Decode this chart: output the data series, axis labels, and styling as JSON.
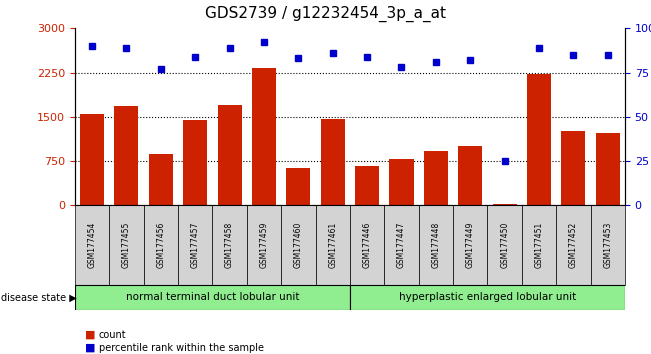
{
  "title": "GDS2739 / g12232454_3p_a_at",
  "samples": [
    "GSM177454",
    "GSM177455",
    "GSM177456",
    "GSM177457",
    "GSM177458",
    "GSM177459",
    "GSM177460",
    "GSM177461",
    "GSM177446",
    "GSM177447",
    "GSM177448",
    "GSM177449",
    "GSM177450",
    "GSM177451",
    "GSM177452",
    "GSM177453"
  ],
  "counts": [
    1550,
    1680,
    870,
    1440,
    1700,
    2320,
    640,
    1460,
    670,
    790,
    920,
    1000,
    20,
    2220,
    1260,
    1230
  ],
  "percentiles": [
    90,
    89,
    77,
    84,
    89,
    92,
    83,
    86,
    84,
    78,
    81,
    82,
    25,
    89,
    85,
    85
  ],
  "group1_label": "normal terminal duct lobular unit",
  "group2_label": "hyperplastic enlarged lobular unit",
  "group1_count": 8,
  "group2_count": 8,
  "bar_color": "#cc2200",
  "dot_color": "#0000cc",
  "ylim_left": [
    0,
    3000
  ],
  "ylim_right": [
    0,
    100
  ],
  "yticks_left": [
    0,
    750,
    1500,
    2250,
    3000
  ],
  "yticks_right": [
    0,
    25,
    50,
    75,
    100
  ],
  "grid_values": [
    750,
    1500,
    2250
  ],
  "background_color": "#ffffff",
  "group1_color": "#90ee90",
  "group2_color": "#90ee90",
  "bar_color_hex": "#cc2200",
  "dot_color_hex": "#0000cc",
  "title_fontsize": 11,
  "bar_width": 0.7,
  "label_fontsize": 5.5,
  "group_fontsize": 7.5,
  "legend_fontsize": 7,
  "disease_label_fontsize": 7
}
